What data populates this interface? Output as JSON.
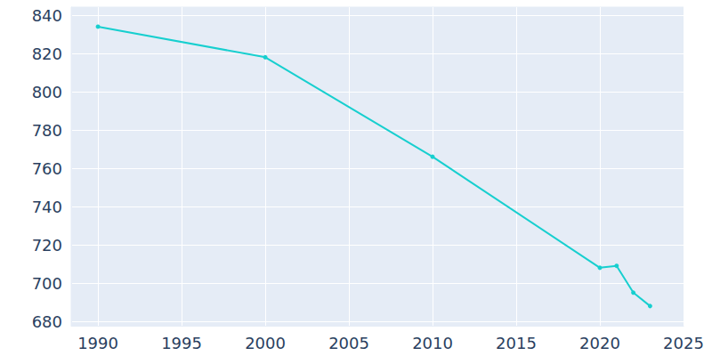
{
  "chart_data": {
    "type": "line",
    "x": [
      1990,
      2000,
      2010,
      2020,
      2021,
      2022,
      2023
    ],
    "values": [
      834,
      818,
      766,
      708,
      709,
      695,
      688
    ],
    "color": "#17cfcf",
    "marker": "circle",
    "xlim": [
      1988.4,
      2025
    ],
    "xticks": [
      1990,
      1995,
      2000,
      2005,
      2010,
      2015,
      2020,
      2025
    ],
    "ylim": [
      677.7,
      844.2
    ],
    "yticks": [
      680,
      700,
      720,
      740,
      760,
      780,
      800,
      820,
      840
    ],
    "grid": true
  }
}
